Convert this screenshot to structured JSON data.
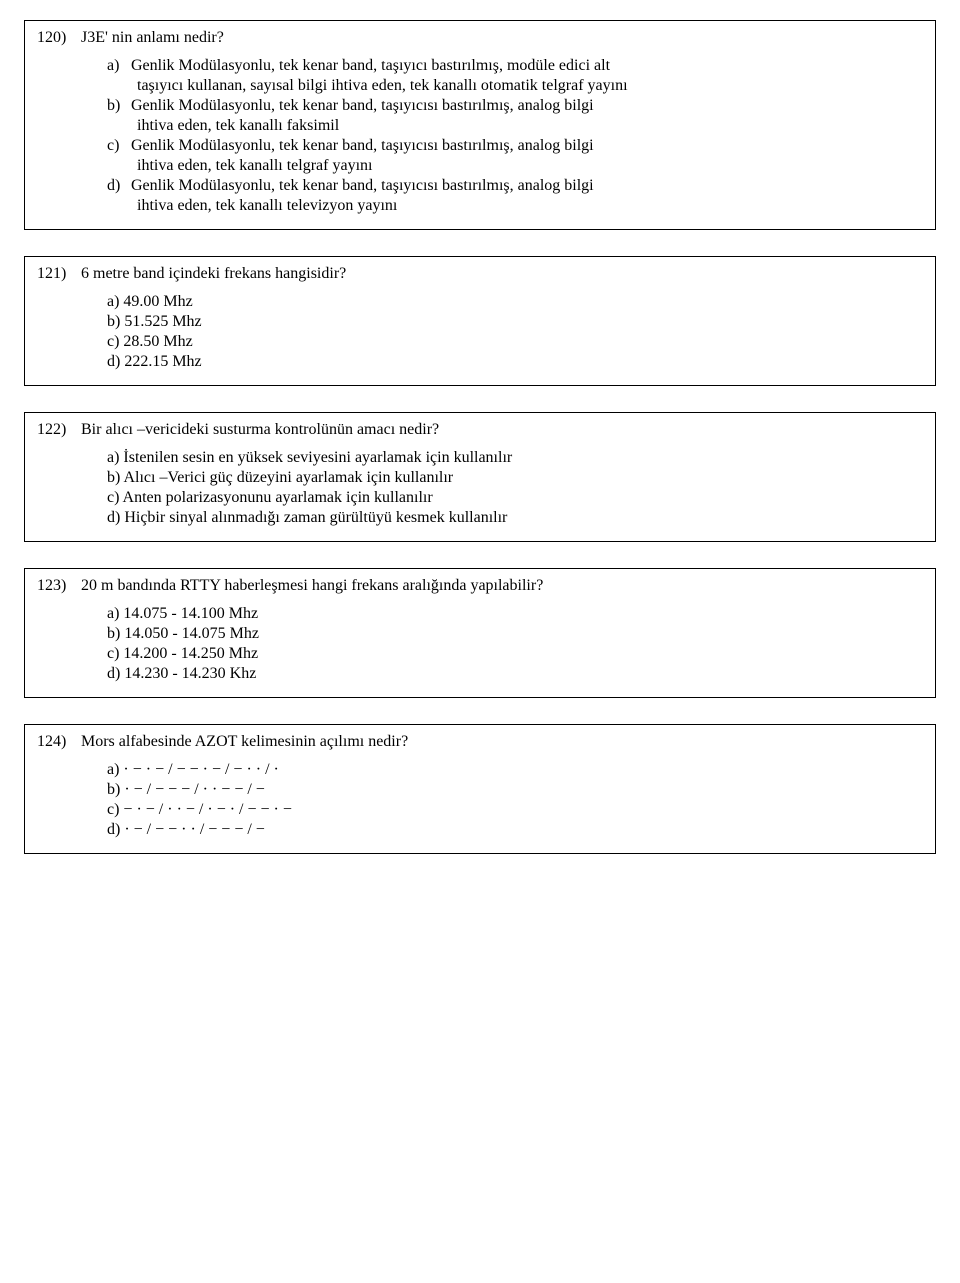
{
  "q120": {
    "number": "120)",
    "text": "J3E' nin anlamı nedir?",
    "a_label": "a)",
    "a_line1": "Genlik Modülasyonlu, tek kenar band, taşıyıcı bastırılmış, modüle edici alt",
    "a_sub1": "taşıyıcı kullanan, sayısal bilgi ihtiva eden, tek kanallı otomatik telgraf yayını",
    "b_label": "b)",
    "b_line1": "Genlik Modülasyonlu, tek kenar band, taşıyıcısı bastırılmış, analog bilgi",
    "b_sub1": "ihtiva eden, tek kanallı faksimil",
    "c_label": "c)",
    "c_line1": "Genlik Modülasyonlu, tek kenar band, taşıyıcısı bastırılmış, analog bilgi",
    "c_sub1": "ihtiva eden, tek kanallı telgraf yayını",
    "d_label": "d)",
    "d_line1": "Genlik Modülasyonlu, tek kenar band, taşıyıcısı bastırılmış, analog bilgi",
    "d_sub1": "ihtiva eden, tek kanallı televizyon yayını"
  },
  "q121": {
    "number": "121)",
    "text": "6 metre band içindeki frekans hangisidir?",
    "a": "a) 49.00 Mhz",
    "b": "b) 51.525 Mhz",
    "c": "c) 28.50 Mhz",
    "d": "d) 222.15 Mhz"
  },
  "q122": {
    "number": "122)",
    "text": "Bir alıcı –vericideki susturma kontrolünün amacı nedir?",
    "a": "a) İstenilen sesin en yüksek seviyesini ayarlamak için kullanılır",
    "b": "b) Alıcı –Verici güç düzeyini ayarlamak için kullanılır",
    "c": "c) Anten polarizasyonunu ayarlamak için kullanılır",
    "d": "d) Hiçbir sinyal alınmadığı zaman gürültüyü kesmek kullanılır"
  },
  "q123": {
    "number": "123)",
    "text": "20 m bandında RTTY haberleşmesi hangi frekans aralığında yapılabilir?",
    "a": "a) 14.075 - 14.100 Mhz",
    "b": "b) 14.050 - 14.075 Mhz",
    "c": "c) 14.200 - 14.250 Mhz",
    "d": "d) 14.230 - 14.230 Khz"
  },
  "q124": {
    "number": "124)",
    "text": "Mors alfabesinde AZOT kelimesinin açılımı nedir?",
    "a": "a)   · − · − / − − · − / − · ·  / ·",
    "b": "b)   · − / − − − / · · − − / −",
    "c": "c)   − · −  / · · − / · − · / − − · −",
    "d": "d)   · −  / − − · · / − − − / −"
  }
}
